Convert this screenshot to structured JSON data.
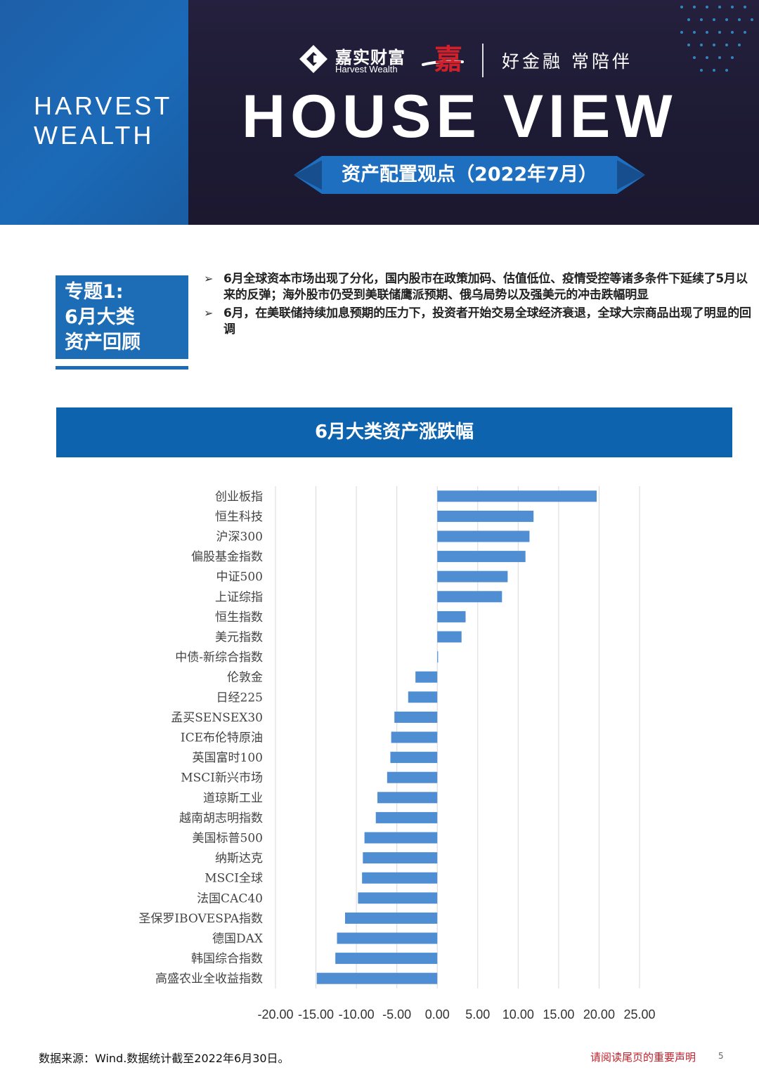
{
  "header": {
    "brand_en": "HARVEST WEALTH",
    "logo_cn": "嘉实财富",
    "logo_en": "Harvest Wealth",
    "logo_jia": "嘉",
    "slogan": "好金融  常陪伴",
    "title": "HOUSE VIEW",
    "subtitle": "资产配置观点（2022年7月）"
  },
  "topic": {
    "label": "专题1:\n6月大类\n资产回顾",
    "bullets": [
      "6月全球资本市场出现了分化，国内股市在政策加码、估值低位、疫情受控等诸多条件下延续了5月以来的反弹；海外股市仍受到美联储鹰派预期、俄乌局势以及强美元的冲击跌幅明显",
      "6月，在美联储持续加息预期的压力下，投资者开始交易全球经济衰退，全球大宗商品出现了明显的回调"
    ]
  },
  "chart_data": {
    "type": "bar",
    "orientation": "horizontal",
    "title": "6月大类资产涨跌幅",
    "categories": [
      "创业板指",
      "恒生科技",
      "沪深300",
      "偏股基金指数",
      "中证500",
      "上证综指",
      "恒生指数",
      "美元指数",
      "中债-新综合指数",
      "伦敦金",
      "日经225",
      "孟买SENSEX30",
      "ICE布伦特原油",
      "英国富时100",
      "MSCI新兴市场",
      "道琼斯工业",
      "越南胡志明指数",
      "美国标普500",
      "纳斯达克",
      "MSCI全球",
      "法国CAC40",
      "圣保罗IBOVESPA指数",
      "德国DAX",
      "韩国综合指数",
      "高盛农业全收益指数"
    ],
    "values": [
      19.7,
      11.9,
      11.4,
      10.9,
      8.7,
      8.0,
      3.5,
      3.0,
      0.1,
      -2.7,
      -3.6,
      -5.3,
      -5.7,
      -5.8,
      -6.2,
      -7.4,
      -7.6,
      -9.0,
      -9.2,
      -9.3,
      -9.8,
      -11.4,
      -12.4,
      -12.6,
      -14.9
    ],
    "xticks": [
      "-20.00",
      "-15.00",
      "-10.00",
      "-5.00",
      "0.00",
      "5.00",
      "10.00",
      "15.00",
      "20.00",
      "25.00"
    ],
    "xlim": [
      -20,
      25
    ],
    "grid": true,
    "colors": {
      "bar": "#4f8ed3"
    }
  },
  "footer": {
    "source": "数据来源：Wind.数据统计截至2022年6月30日。",
    "notice": "请阅读尾页的重要声明",
    "page": "5"
  }
}
